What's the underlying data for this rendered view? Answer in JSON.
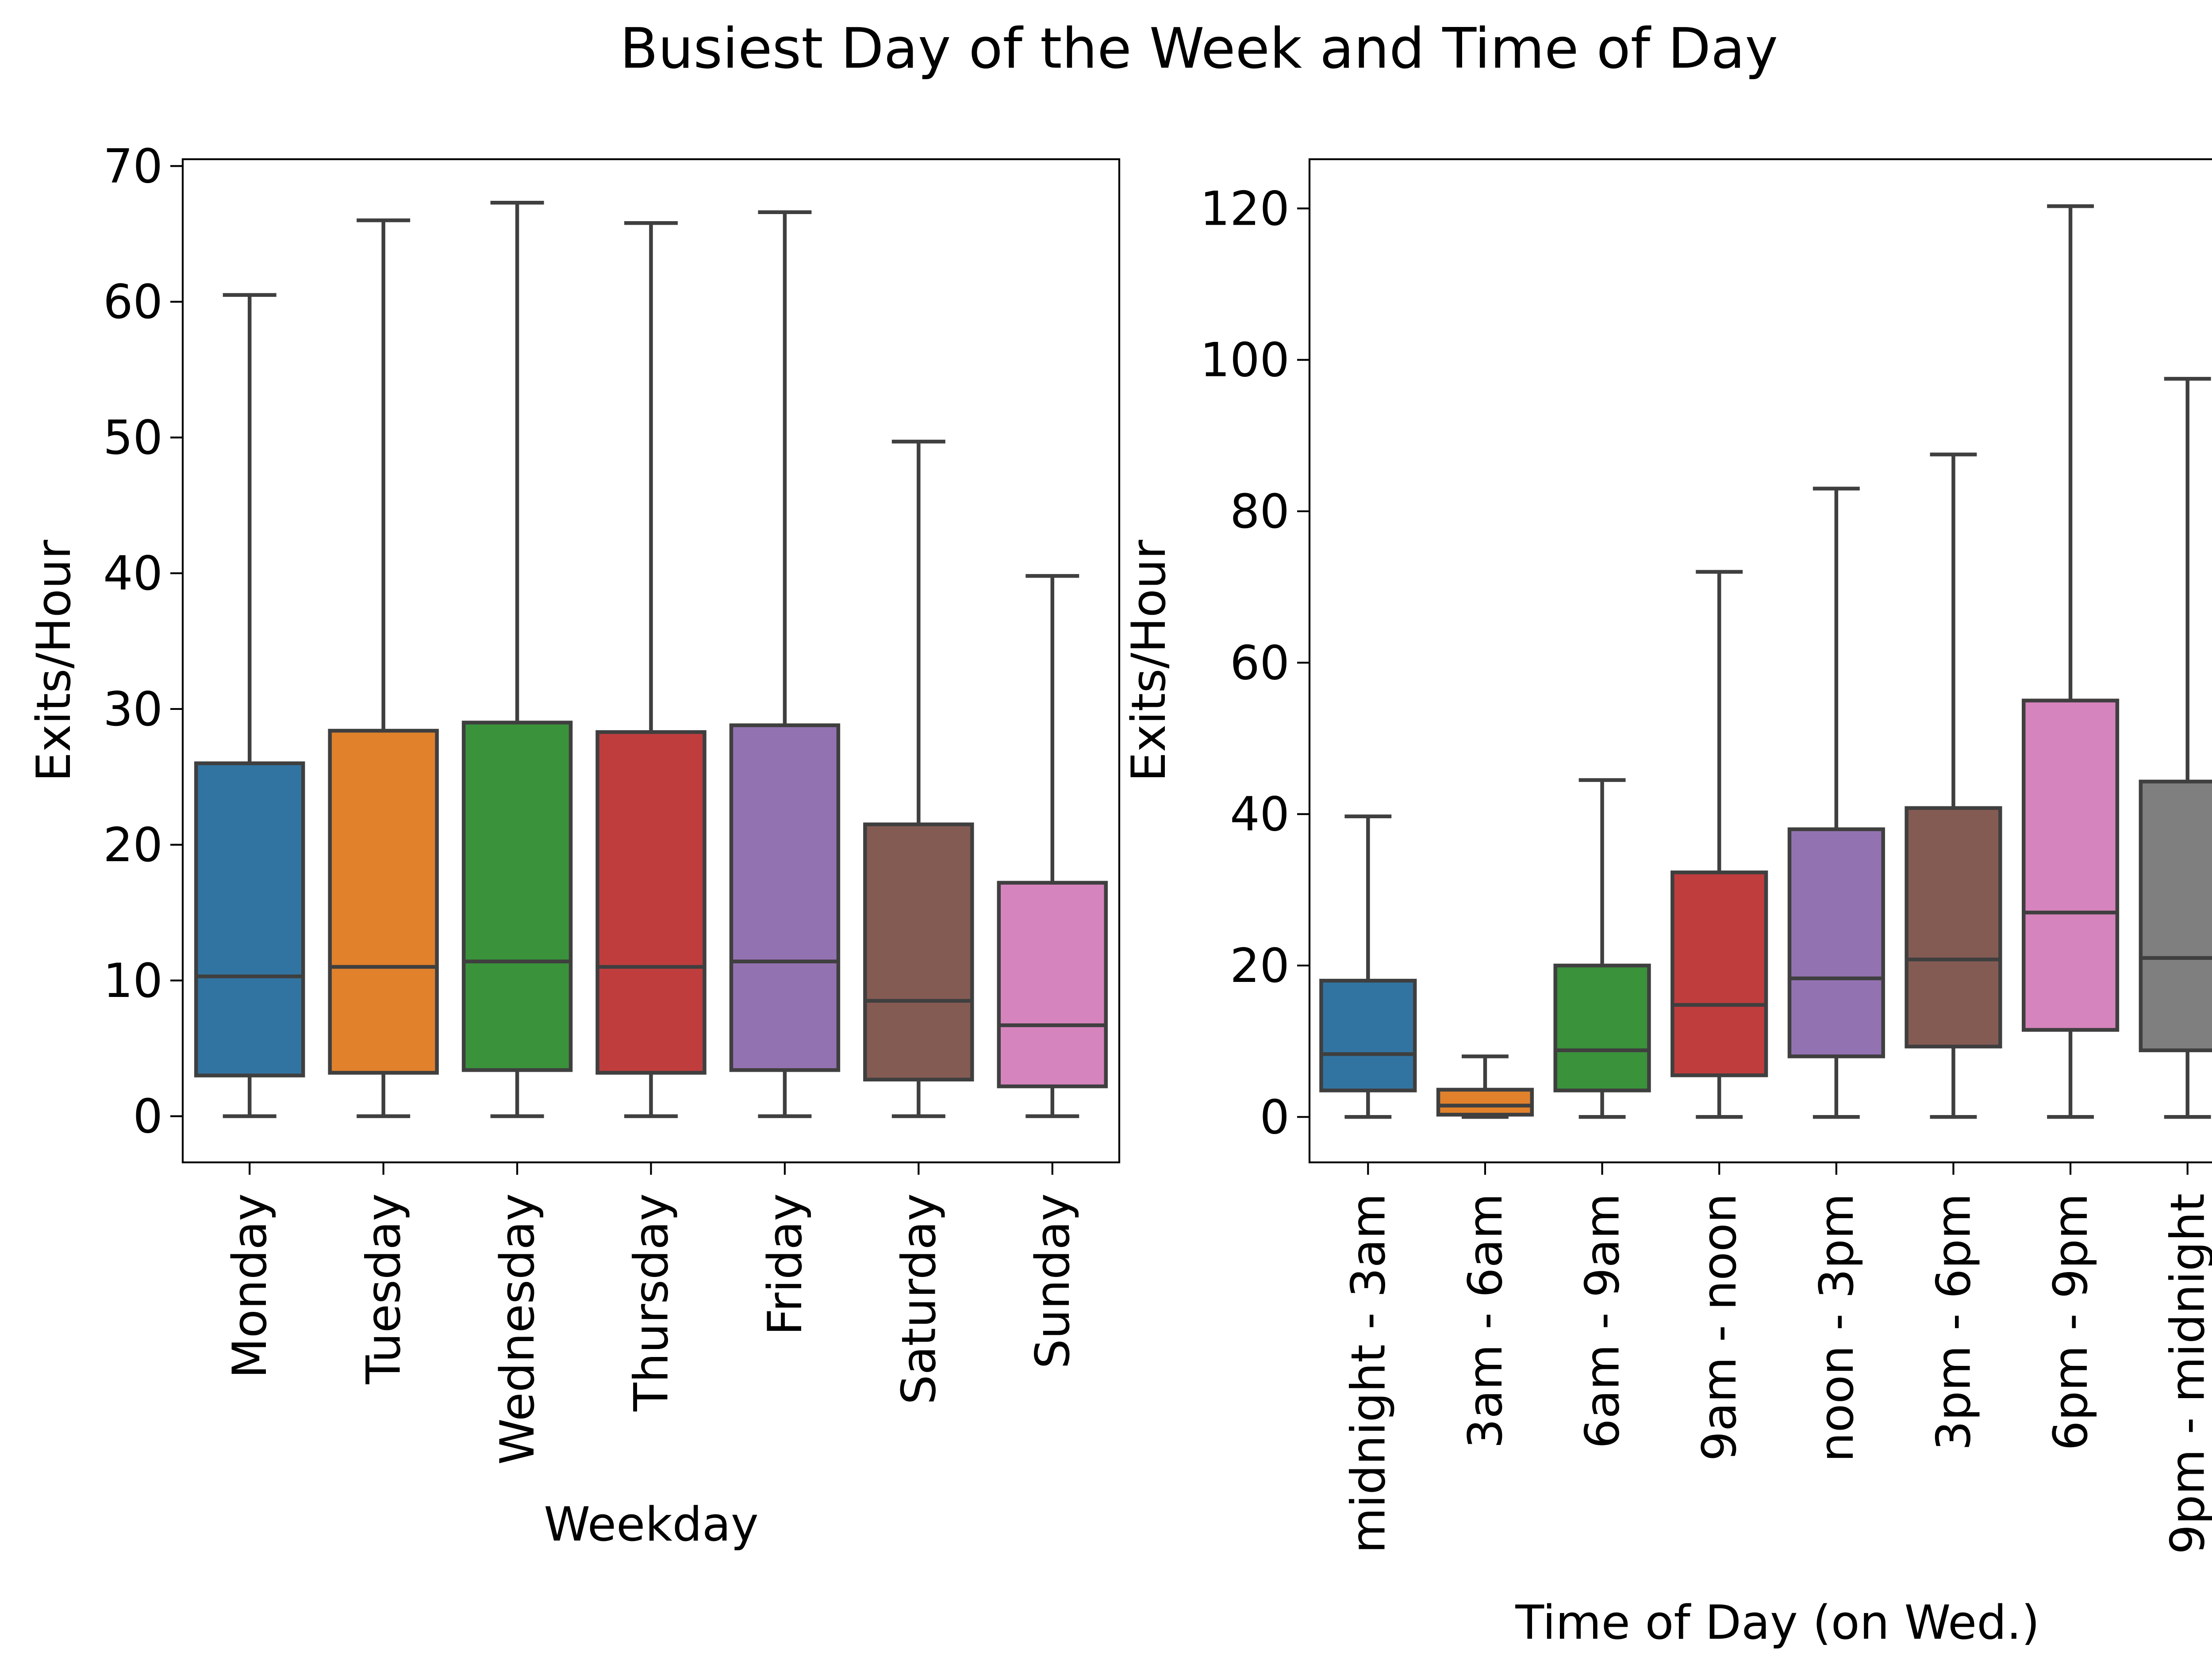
{
  "title": "Busiest Day of the Week and Time of Day",
  "chart_data": [
    {
      "type": "box",
      "xlabel": "Weekday",
      "ylabel": "Exits/Hour",
      "ylim": [
        -3.4,
        70.5
      ],
      "yticks": [
        0,
        10,
        20,
        30,
        40,
        50,
        60,
        70
      ],
      "categories": [
        "Monday",
        "Tuesday",
        "Wednesday",
        "Thursday",
        "Friday",
        "Saturday",
        "Sunday"
      ],
      "boxes": [
        {
          "whislo": 0,
          "q1": 3,
          "med": 10.3,
          "q3": 26,
          "whishi": 60.5,
          "color": "#3274a1"
        },
        {
          "whislo": 0,
          "q1": 3.2,
          "med": 11,
          "q3": 28.4,
          "whishi": 66,
          "color": "#e1812c"
        },
        {
          "whislo": 0,
          "q1": 3.4,
          "med": 11.4,
          "q3": 29,
          "whishi": 67.3,
          "color": "#3a923a"
        },
        {
          "whislo": 0,
          "q1": 3.2,
          "med": 11,
          "q3": 28.3,
          "whishi": 65.8,
          "color": "#c03d3e"
        },
        {
          "whislo": 0,
          "q1": 3.4,
          "med": 11.4,
          "q3": 28.8,
          "whishi": 66.6,
          "color": "#9372b2"
        },
        {
          "whislo": 0,
          "q1": 2.7,
          "med": 8.5,
          "q3": 21.5,
          "whishi": 49.7,
          "color": "#845b53"
        },
        {
          "whislo": 0,
          "q1": 2.2,
          "med": 6.7,
          "q3": 17.2,
          "whishi": 39.8,
          "color": "#d684bd"
        }
      ]
    },
    {
      "type": "box",
      "xlabel": "Time of Day (on Wed.)",
      "ylabel": "Exits/Hour",
      "ylim": [
        -6,
        126.5
      ],
      "yticks": [
        0,
        20,
        40,
        60,
        80,
        100,
        120
      ],
      "categories": [
        "midnight - 3am",
        "3am - 6am",
        "6am - 9am",
        "9am - noon",
        "noon - 3pm",
        "3pm - 6pm",
        "6pm - 9pm",
        "9pm - midnight"
      ],
      "boxes": [
        {
          "whislo": 0,
          "q1": 3.5,
          "med": 8.3,
          "q3": 18,
          "whishi": 39.7,
          "color": "#3274a1"
        },
        {
          "whislo": 0,
          "q1": 0.3,
          "med": 1.5,
          "q3": 3.6,
          "whishi": 8,
          "color": "#e1812c"
        },
        {
          "whislo": 0,
          "q1": 3.5,
          "med": 8.8,
          "q3": 20,
          "whishi": 44.5,
          "color": "#3a923a"
        },
        {
          "whislo": 0,
          "q1": 5.5,
          "med": 14.8,
          "q3": 32.3,
          "whishi": 72,
          "color": "#c03d3e"
        },
        {
          "whislo": 0,
          "q1": 8,
          "med": 18.3,
          "q3": 38,
          "whishi": 83,
          "color": "#9372b2"
        },
        {
          "whislo": 0,
          "q1": 9.3,
          "med": 20.8,
          "q3": 40.8,
          "whishi": 87.5,
          "color": "#845b53"
        },
        {
          "whislo": 0,
          "q1": 11.5,
          "med": 27,
          "q3": 55,
          "whishi": 120.3,
          "color": "#d684bd"
        },
        {
          "whislo": 0,
          "q1": 8.8,
          "med": 21,
          "q3": 44.3,
          "whishi": 97.5,
          "color": "#7f7f7f"
        }
      ]
    }
  ]
}
